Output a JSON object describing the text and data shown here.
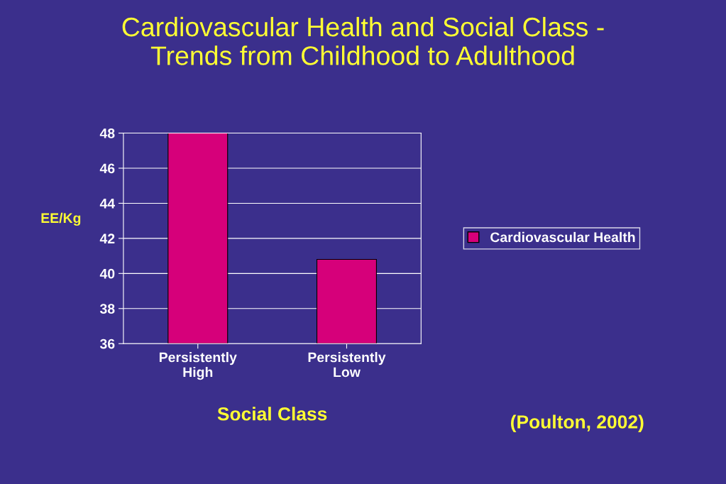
{
  "chart_data": {
    "type": "bar",
    "title": "Cardiovascular Health and Social Class -\nTrends from Childhood to Adulthood",
    "xlabel": "Social Class",
    "ylabel": "EE/Kg",
    "categories": [
      "Persistently\nHigh",
      "Persistently\nLow"
    ],
    "series": [
      {
        "name": "Cardiovascular Health",
        "color": "#d6007a",
        "values": [
          48,
          40.8
        ]
      }
    ],
    "ylim": [
      36,
      48
    ],
    "yticks": [
      36,
      38,
      40,
      42,
      44,
      46,
      48
    ],
    "grid": "y",
    "legend": "right",
    "annotations": [
      "(Poulton, 2002)"
    ]
  }
}
